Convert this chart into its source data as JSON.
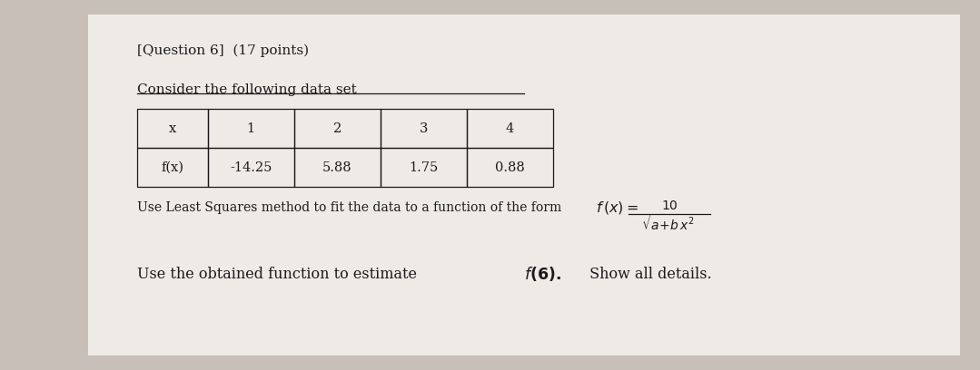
{
  "title_line1": "[Question 6]  (17 points)",
  "title_line2": "Consider the following data set",
  "table_headers": [
    "x",
    "1",
    "2",
    "3",
    "4"
  ],
  "table_row": [
    "f(x)",
    "-14.25",
    "5.88",
    "1.75",
    "0.88"
  ],
  "instruction1_prefix": "Use Least Squares method to fit the data to a function of the form ",
  "instruction2_prefix": "Use the obtained function to estimate ",
  "instruction2_math": "f(6).",
  "instruction2_suffix": " Show all details.",
  "background_color": "#c8bfb8",
  "paper_color": "#eeebe6",
  "text_color": "#1a1a1a",
  "title_fontsize": 11.0,
  "body_fontsize": 10.0,
  "table_fontsize": 10.5
}
